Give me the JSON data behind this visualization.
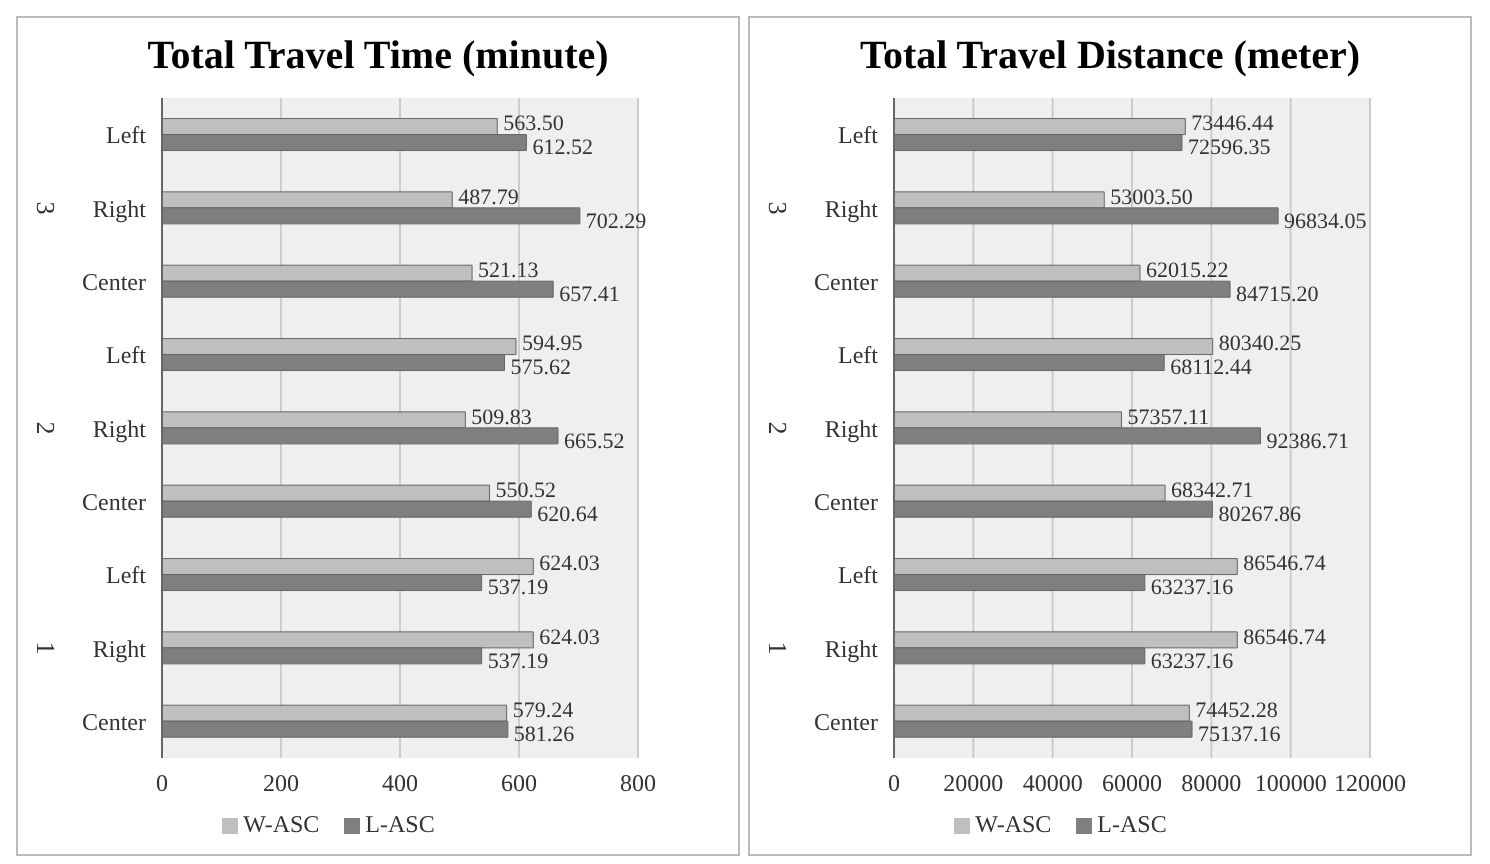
{
  "chart_data": [
    {
      "type": "bar",
      "title": "Total Travel Time (minute)",
      "orientation": "horizontal",
      "categories": [
        "Left",
        "Right",
        "Center",
        "Left",
        "Right",
        "Center",
        "Left",
        "Right",
        "Center"
      ],
      "annotations": [
        "3",
        "2",
        "1"
      ],
      "series": [
        {
          "name": "W-ASC",
          "color": "#bfbfbf",
          "values": [
            563.5,
            487.79,
            521.13,
            594.95,
            509.83,
            550.52,
            624.03,
            624.03,
            579.24
          ],
          "value_labels": [
            "563.50",
            "487.79",
            "521.13",
            "594.95",
            "509.83",
            "550.52",
            "624.03",
            "624.03",
            "579.24"
          ]
        },
        {
          "name": "L-ASC",
          "color": "#7f7f7f",
          "values": [
            612.52,
            702.29,
            657.41,
            575.62,
            665.52,
            620.64,
            537.19,
            537.19,
            581.26
          ],
          "value_labels": [
            "612.52",
            "702.29",
            "657.41",
            "575.62",
            "665.52",
            "620.64",
            "537.19",
            "537.19",
            "581.26"
          ]
        }
      ],
      "xlim": [
        0,
        800
      ],
      "xticks": [
        0,
        200,
        400,
        600,
        800
      ],
      "grid": "x",
      "legend": "bottom"
    },
    {
      "type": "bar",
      "title": "Total Travel Distance (meter)",
      "orientation": "horizontal",
      "categories": [
        "Left",
        "Right",
        "Center",
        "Left",
        "Right",
        "Center",
        "Left",
        "Right",
        "Center"
      ],
      "annotations": [
        "3",
        "2",
        "1"
      ],
      "series": [
        {
          "name": "W-ASC",
          "color": "#bfbfbf",
          "values": [
            73446.44,
            53003.5,
            62015.22,
            80340.25,
            57357.11,
            68342.71,
            86546.74,
            86546.74,
            74452.28
          ],
          "value_labels": [
            "73446.44",
            "53003.50",
            "62015.22",
            "80340.25",
            "57357.11",
            "68342.71",
            "86546.74",
            "86546.74",
            "74452.28"
          ]
        },
        {
          "name": "L-ASC",
          "color": "#7f7f7f",
          "values": [
            72596.35,
            96834.05,
            84715.2,
            68112.44,
            92386.71,
            80267.86,
            63237.16,
            63237.16,
            75137.16
          ],
          "value_labels": [
            "72596.35",
            "96834.05",
            "84715.20",
            "68112.44",
            "92386.71",
            "80267.86",
            "63237.16",
            "63237.16",
            "75137.16"
          ]
        }
      ],
      "xlim": [
        0,
        120000
      ],
      "xticks": [
        0,
        20000,
        40000,
        60000,
        80000,
        100000,
        120000
      ],
      "grid": "x",
      "legend": "bottom"
    }
  ]
}
